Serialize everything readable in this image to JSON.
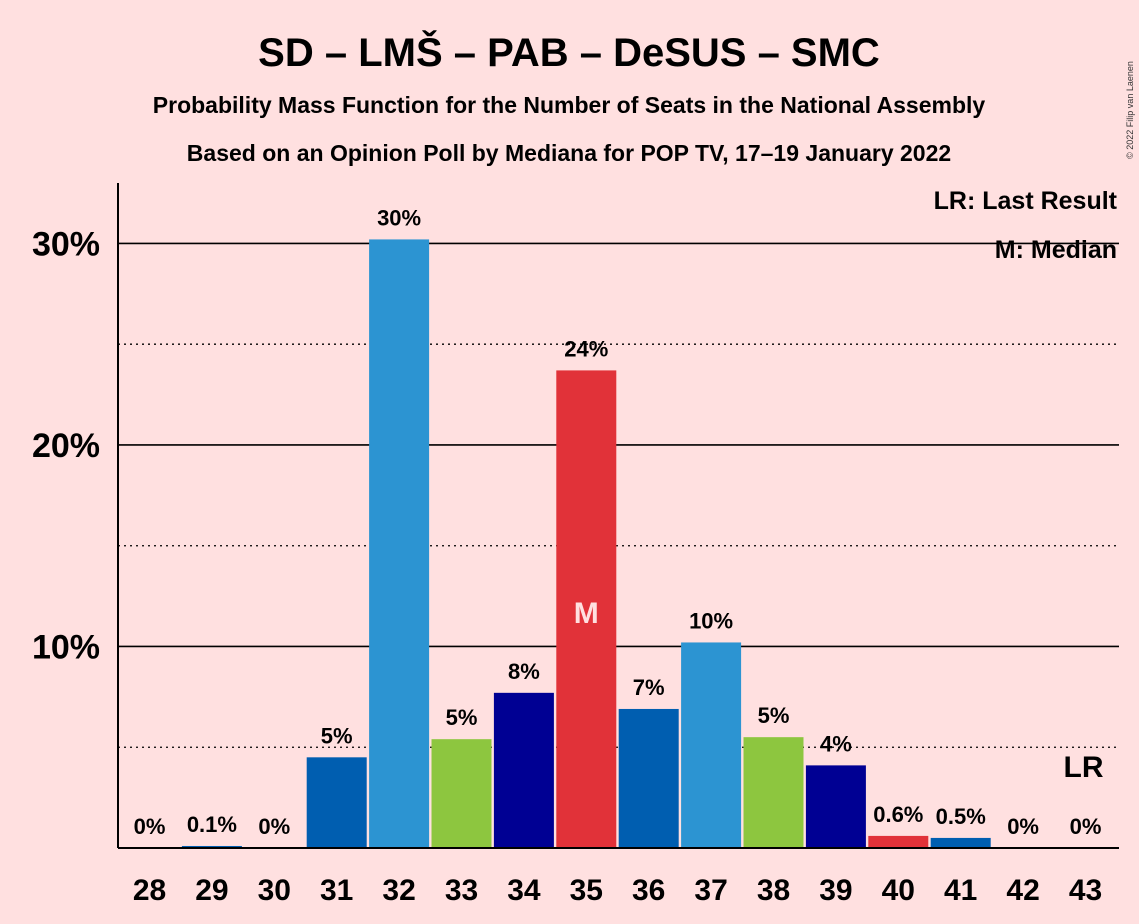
{
  "title": "SD – LMŠ – PAB – DeSUS – SMC",
  "subtitle_line1": "Probability Mass Function for the Number of Seats in the National Assembly",
  "subtitle_line2": "Based on an Opinion Poll by Mediana for POP TV, 17–19 January 2022",
  "legend": {
    "last_result": "LR: Last Result",
    "median": "M: Median"
  },
  "copyright": "© 2022 Filip van Laenen",
  "chart_data": {
    "type": "bar",
    "categories": [
      "28",
      "29",
      "30",
      "31",
      "32",
      "33",
      "34",
      "35",
      "36",
      "37",
      "38",
      "39",
      "40",
      "41",
      "42",
      "43"
    ],
    "values": [
      0,
      0.1,
      0,
      4.5,
      30.2,
      5.4,
      7.7,
      23.7,
      6.9,
      10.2,
      5.5,
      4.1,
      0.6,
      0.5,
      0,
      0
    ],
    "value_labels": [
      "0%",
      "0.1%",
      "0%",
      "5%",
      "30%",
      "5%",
      "8%",
      "24%",
      "7%",
      "10%",
      "5%",
      "4%",
      "0.6%",
      "0.5%",
      "0%",
      "0%"
    ],
    "colors": [
      "#005EB0",
      "#005EB0",
      "#005EB0",
      "#005EB0",
      "#2C94D2",
      "#8DC63F",
      "#000093",
      "#E13239",
      "#005EB0",
      "#2C94D2",
      "#8DC63F",
      "#000093",
      "#E13239",
      "#005EB0",
      "#005EB0",
      "#005EB0"
    ],
    "yticks": [
      10,
      20,
      30
    ],
    "ytick_labels": [
      "10%",
      "20%",
      "30%"
    ],
    "ylim": [
      0,
      33
    ],
    "median_seat": "35",
    "median_label": "M",
    "last_result_seat": "43",
    "last_result_label": "LR",
    "grid": true
  }
}
